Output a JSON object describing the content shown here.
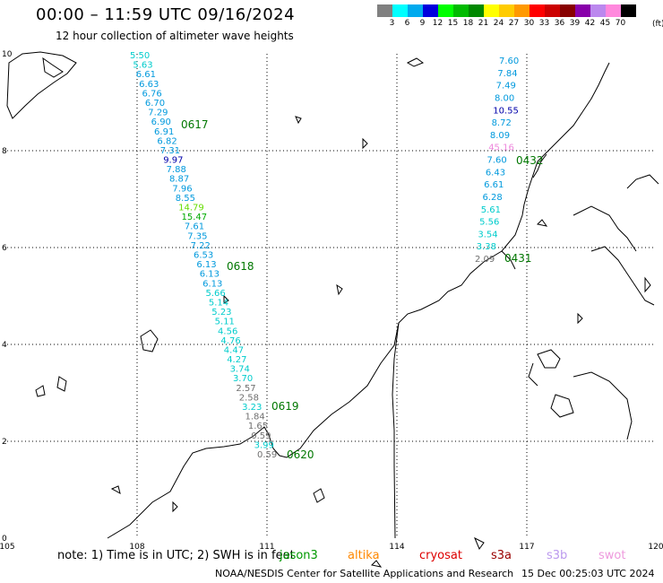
{
  "title": "00:00 – 11:59 UTC 09/16/2024",
  "subtitle": "12 hour collection of altimeter wave heights",
  "color_scale": {
    "ticks": [
      "3",
      "6",
      "9",
      "12",
      "15",
      "18",
      "21",
      "24",
      "27",
      "30",
      "33",
      "36",
      "39",
      "42",
      "45",
      "70"
    ],
    "unit": "(ft)",
    "colors": [
      "#808080",
      "#00ffff",
      "#00aaee",
      "#0000dd",
      "#00ff00",
      "#00bb00",
      "#008800",
      "#ffff00",
      "#ffcc00",
      "#ff9900",
      "#ff0000",
      "#cc0000",
      "#880000",
      "#8800aa",
      "#bb88ee",
      "#ff88dd",
      "#000000"
    ]
  },
  "axes": {
    "x_ticks": [
      "105",
      "108",
      "111",
      "114",
      "117",
      "120"
    ],
    "y_ticks": [
      "10",
      "8",
      "6",
      "4",
      "2",
      "0"
    ]
  },
  "tracks": [
    {
      "label": "0617",
      "color": "#007700"
    },
    {
      "label": "0618",
      "color": "#007700"
    },
    {
      "label": "0619",
      "color": "#007700"
    },
    {
      "label": "0620",
      "color": "#007700"
    },
    {
      "label": "0432",
      "color": "#ee88dd"
    },
    {
      "label": "0431",
      "color": "#ee88dd"
    }
  ],
  "wave_heights": {
    "track_west": [
      {
        "v": "5.50",
        "c": "#00cccc"
      },
      {
        "v": "5.63",
        "c": "#00cccc"
      },
      {
        "v": "6.61",
        "c": "#0099dd"
      },
      {
        "v": "6.63",
        "c": "#0099dd"
      },
      {
        "v": "6.76",
        "c": "#0099dd"
      },
      {
        "v": "6.70",
        "c": "#0099dd"
      },
      {
        "v": "7.29",
        "c": "#0099dd"
      },
      {
        "v": "6.90",
        "c": "#0099dd"
      },
      {
        "v": "6.91",
        "c": "#0099dd"
      },
      {
        "v": "6.82",
        "c": "#0099dd"
      },
      {
        "v": "7.31",
        "c": "#0099dd"
      },
      {
        "v": "9.97",
        "c": "#0000aa"
      },
      {
        "v": "7.88",
        "c": "#0099dd"
      },
      {
        "v": "8.87",
        "c": "#0099dd"
      },
      {
        "v": "7.96",
        "c": "#0099dd"
      },
      {
        "v": "8.55",
        "c": "#0099dd"
      },
      {
        "v": "14.79",
        "c": "#66dd00"
      },
      {
        "v": "15.47",
        "c": "#00aa00"
      },
      {
        "v": "7.61",
        "c": "#0099dd"
      },
      {
        "v": "7.35",
        "c": "#0099dd"
      },
      {
        "v": "7.22",
        "c": "#0099dd"
      },
      {
        "v": "6.53",
        "c": "#0099dd"
      },
      {
        "v": "6.13",
        "c": "#0099dd"
      },
      {
        "v": "6.13",
        "c": "#0099dd"
      },
      {
        "v": "6.13",
        "c": "#0099dd"
      },
      {
        "v": "5.66",
        "c": "#00cccc"
      },
      {
        "v": "5.14",
        "c": "#00cccc"
      },
      {
        "v": "5.23",
        "c": "#00cccc"
      },
      {
        "v": "5.11",
        "c": "#00cccc"
      },
      {
        "v": "4.56",
        "c": "#00cccc"
      },
      {
        "v": "4.76",
        "c": "#00cccc"
      },
      {
        "v": "4.47",
        "c": "#00cccc"
      },
      {
        "v": "4.27",
        "c": "#00cccc"
      },
      {
        "v": "3.74",
        "c": "#00cccc"
      },
      {
        "v": "3.70",
        "c": "#00cccc"
      },
      {
        "v": "2.57",
        "c": "#707070"
      },
      {
        "v": "2.58",
        "c": "#707070"
      },
      {
        "v": "3.23",
        "c": "#00cccc"
      },
      {
        "v": "1.84",
        "c": "#707070"
      },
      {
        "v": "1.65",
        "c": "#707070"
      },
      {
        "v": "0.59",
        "c": "#707070"
      },
      {
        "v": "3.99",
        "c": "#00cccc"
      },
      {
        "v": "0.59",
        "c": "#707070"
      }
    ],
    "track_east": [
      {
        "v": "7.60",
        "c": "#0099dd"
      },
      {
        "v": "7.84",
        "c": "#0099dd"
      },
      {
        "v": "7.49",
        "c": "#0099dd"
      },
      {
        "v": "8.00",
        "c": "#0099dd"
      },
      {
        "v": "10.55",
        "c": "#0000aa"
      },
      {
        "v": "8.72",
        "c": "#0099dd"
      },
      {
        "v": "8.09",
        "c": "#0099dd"
      },
      {
        "v": "45.16",
        "c": "#ee88dd"
      },
      {
        "v": "7.60",
        "c": "#0099dd"
      },
      {
        "v": "6.43",
        "c": "#0099dd"
      },
      {
        "v": "6.61",
        "c": "#0099dd"
      },
      {
        "v": "6.28",
        "c": "#0099dd"
      },
      {
        "v": "5.61",
        "c": "#00cccc"
      },
      {
        "v": "5.56",
        "c": "#00cccc"
      },
      {
        "v": "3.54",
        "c": "#00cccc"
      },
      {
        "v": "3.38",
        "c": "#00cccc"
      },
      {
        "v": "2.09",
        "c": "#707070"
      }
    ]
  },
  "note": "note:  1) Time is in UTC;  2) SWH is in feet",
  "satellites": [
    {
      "name": "jason3",
      "color": "#009900"
    },
    {
      "name": "altika",
      "color": "#ff8800"
    },
    {
      "name": "cryosat",
      "color": "#dd0000"
    },
    {
      "name": "s3a",
      "color": "#990000"
    },
    {
      "name": "s3b",
      "color": "#bb99ee"
    },
    {
      "name": "swot",
      "color": "#ee99dd"
    }
  ],
  "credit": "NOAA/NESDIS Center for Satellite Applications and Research",
  "timestamp": "15 Dec 00:25:03 UTC 2024"
}
